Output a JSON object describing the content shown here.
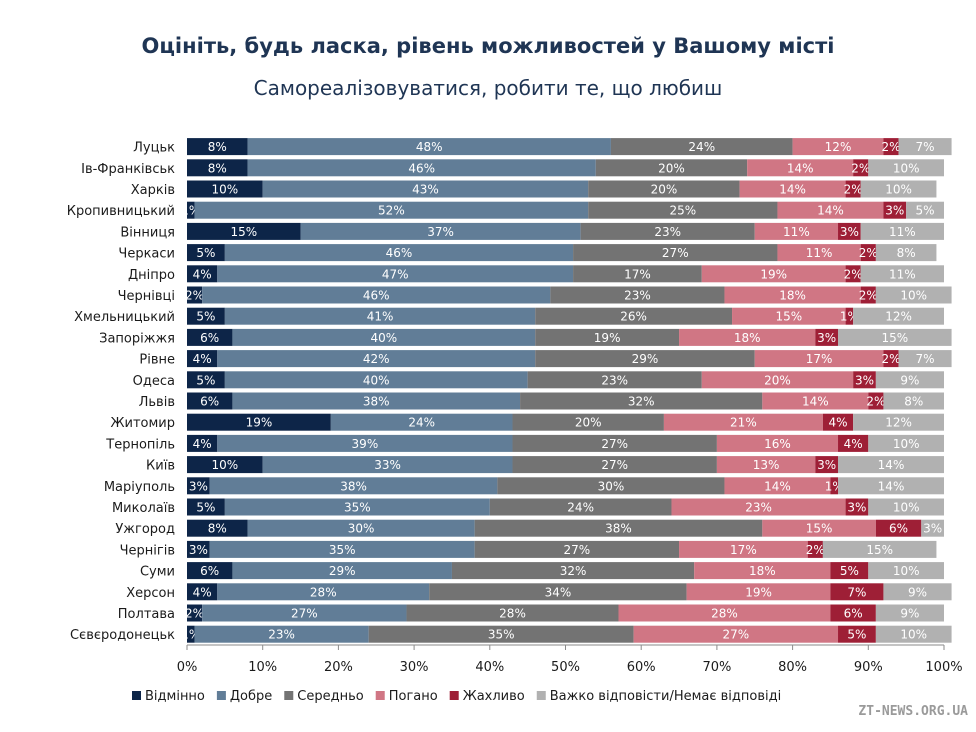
{
  "title": "Оцініть, будь ласка, рівень можливостей у Вашому місті",
  "subtitle": "Самореалізовуватися, робити те, що любиш",
  "watermark": "ZT-NEWS.ORG.UA",
  "chart_data": {
    "type": "bar",
    "orientation": "horizontal",
    "stacked": true,
    "percent": true,
    "title": "Оцініть, будь ласка, рівень можливостей у Вашому місті",
    "subtitle": "Самореалізовуватися, робити те, що любиш",
    "xlim": [
      0,
      100
    ],
    "x_ticks": [
      "0%",
      "10%",
      "20%",
      "30%",
      "40%",
      "50%",
      "60%",
      "70%",
      "80%",
      "90%",
      "100%"
    ],
    "grid": false,
    "legend_position": "bottom",
    "categories": [
      "Луцьк",
      "Ів-Франківськ",
      "Харків",
      "Кропивницький",
      "Вінниця",
      "Черкаси",
      "Дніпро",
      "Чернівці",
      "Хмельницький",
      "Запоріжжя",
      "Рівне",
      "Одеса",
      "Львів",
      "Житомир",
      "Тернопіль",
      "Київ",
      "Маріуполь",
      "Миколаїв",
      "Ужгород",
      "Чернігів",
      "Суми",
      "Херсон",
      "Полтава",
      "Сєвєродонецьк"
    ],
    "series": [
      {
        "name": "Відмінно",
        "color": "#0d2548",
        "values": [
          8,
          8,
          10,
          1,
          15,
          5,
          4,
          2,
          5,
          6,
          4,
          5,
          6,
          19,
          4,
          10,
          3,
          5,
          8,
          3,
          6,
          4,
          2,
          1
        ]
      },
      {
        "name": "Добре",
        "color": "#617d97",
        "values": [
          48,
          46,
          43,
          52,
          37,
          46,
          47,
          46,
          41,
          40,
          42,
          40,
          38,
          24,
          39,
          33,
          38,
          35,
          30,
          35,
          29,
          28,
          27,
          23
        ]
      },
      {
        "name": "Середньо",
        "color": "#737373",
        "values": [
          24,
          20,
          20,
          25,
          23,
          27,
          17,
          23,
          26,
          19,
          29,
          23,
          32,
          20,
          27,
          27,
          30,
          24,
          38,
          27,
          32,
          34,
          28,
          35
        ]
      },
      {
        "name": "Погано",
        "color": "#d07684",
        "values": [
          12,
          14,
          14,
          14,
          11,
          11,
          19,
          18,
          15,
          18,
          17,
          20,
          14,
          21,
          16,
          13,
          14,
          23,
          15,
          17,
          18,
          19,
          28,
          27
        ]
      },
      {
        "name": "Жахливо",
        "color": "#9e1f36",
        "values": [
          2,
          2,
          2,
          3,
          3,
          2,
          2,
          2,
          1,
          3,
          2,
          3,
          2,
          4,
          4,
          3,
          1,
          3,
          6,
          2,
          5,
          7,
          6,
          5
        ]
      },
      {
        "name": "Важко відповісти/Немає відповіді",
        "color": "#b1b1b1",
        "values": [
          7,
          10,
          10,
          5,
          11,
          8,
          11,
          10,
          12,
          15,
          7,
          9,
          8,
          12,
          10,
          14,
          14,
          10,
          3,
          15,
          10,
          9,
          9,
          10
        ]
      }
    ]
  }
}
